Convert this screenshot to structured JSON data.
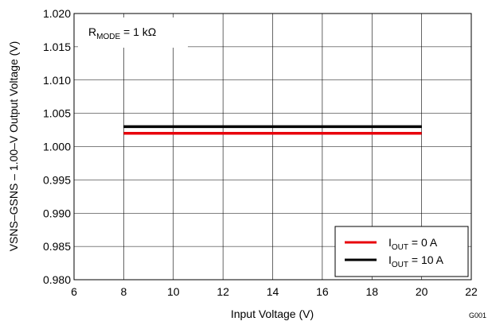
{
  "chart_data": {
    "type": "line",
    "xlabel": "Input  Voltage (V)",
    "ylabel": "VSNS–GSNS – 1.00–V Output Voltage (V)",
    "xlim": [
      6,
      22
    ],
    "ylim": [
      0.98,
      1.02
    ],
    "x_ticks": [
      "6",
      "8",
      "10",
      "12",
      "14",
      "16",
      "18",
      "20",
      "22"
    ],
    "y_ticks": [
      "0.980",
      "0.985",
      "0.990",
      "0.995",
      "1.000",
      "1.005",
      "1.010",
      "1.015",
      "1.020"
    ],
    "grid": true,
    "annotation": {
      "main": "R",
      "sub": "MODE",
      "rest": " = 1 kΩ"
    },
    "legend_position": "bottom-right",
    "series": [
      {
        "name_main": "I",
        "name_sub": "OUT",
        "name_rest": " = 0 A",
        "color": "#e8000b",
        "x": [
          8,
          20
        ],
        "y": [
          1.002,
          1.002
        ]
      },
      {
        "name_main": "I",
        "name_sub": "OUT",
        "name_rest": " = 10 A",
        "color": "#000000",
        "x": [
          8,
          20
        ],
        "y": [
          1.003,
          1.003
        ]
      }
    ],
    "figure_id": "G001"
  }
}
